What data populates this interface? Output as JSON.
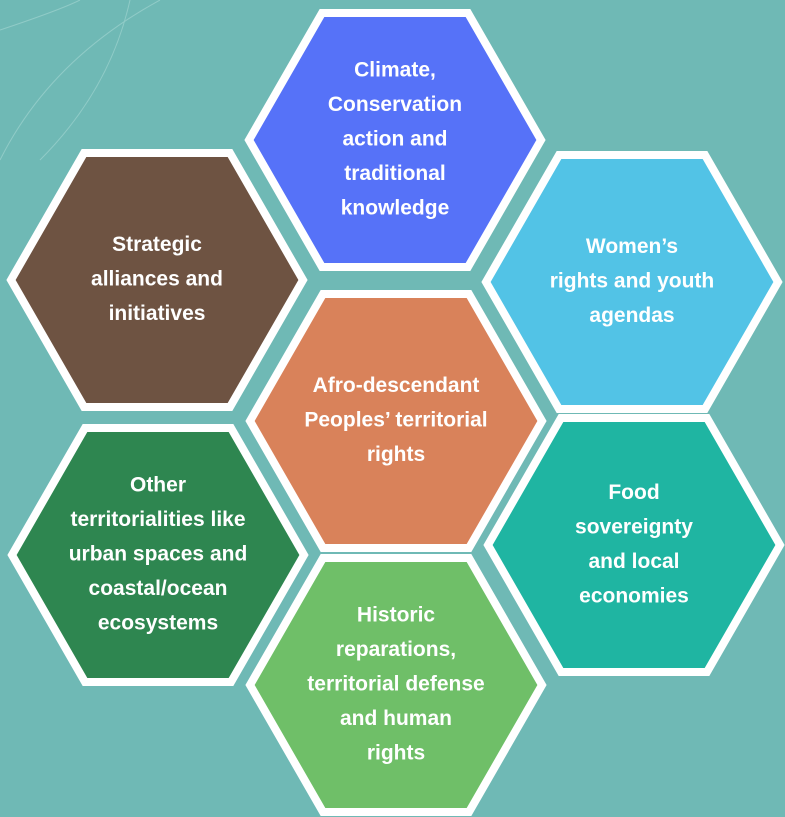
{
  "hexagons": [
    {
      "lines": [
        "Climate,",
        "Conservation",
        "action and",
        "traditional",
        "knowledge"
      ],
      "color": "#5672f8"
    },
    {
      "lines": [
        "Strategic",
        "alliances and",
        "initiatives"
      ],
      "color": "#6e5342"
    },
    {
      "lines": [
        "Women’s",
        "rights and youth",
        "agendas"
      ],
      "color": "#52c3e6"
    },
    {
      "lines": [
        "Afro-descendant",
        "Peoples’ territorial",
        "rights"
      ],
      "color": "#d9825a"
    },
    {
      "lines": [
        "Other",
        "territorialities like",
        "urban spaces and",
        "coastal/ocean",
        "ecosystems"
      ],
      "color": "#2e8650"
    },
    {
      "lines": [
        "Food",
        "sovereignty",
        "and local",
        "economies"
      ],
      "color": "#1fb5a2"
    },
    {
      "lines": [
        "Historic",
        "reparations,",
        "territorial defense",
        "and human",
        "rights"
      ],
      "color": "#6fbf68"
    }
  ]
}
